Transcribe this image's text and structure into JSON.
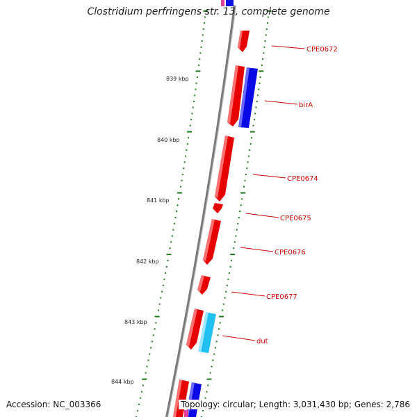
{
  "title": "Clostridium perfringens str. 13, complete genome",
  "accession": "Accession: NC_003366",
  "topology": "Topology: circular; Length: 3,031,430 bp; Genes: 2,786",
  "colors": {
    "forward_gene": "#e60000",
    "reverse_gene": "#0a0ae6",
    "reverse_gene_alt": "#22c0f0",
    "backbone": "#8c8c8c",
    "ticks": "#1a7a1a",
    "label": "#cc0000"
  },
  "scale": {
    "unit": "kbp",
    "labels": [
      "839 kbp",
      "840 kbp",
      "841 kbp",
      "842 kbp",
      "843 kbp",
      "844 kbp"
    ]
  },
  "genes": [
    {
      "name": "CPE0672",
      "strand": "+"
    },
    {
      "name": "birA",
      "strand": "-"
    },
    {
      "name": "CPE0674",
      "strand": "+"
    },
    {
      "name": "CPE0675",
      "strand": "+"
    },
    {
      "name": "CPE0676",
      "strand": "+"
    },
    {
      "name": "CPE0677",
      "strand": "+"
    },
    {
      "name": "dut",
      "strand": "-"
    }
  ]
}
